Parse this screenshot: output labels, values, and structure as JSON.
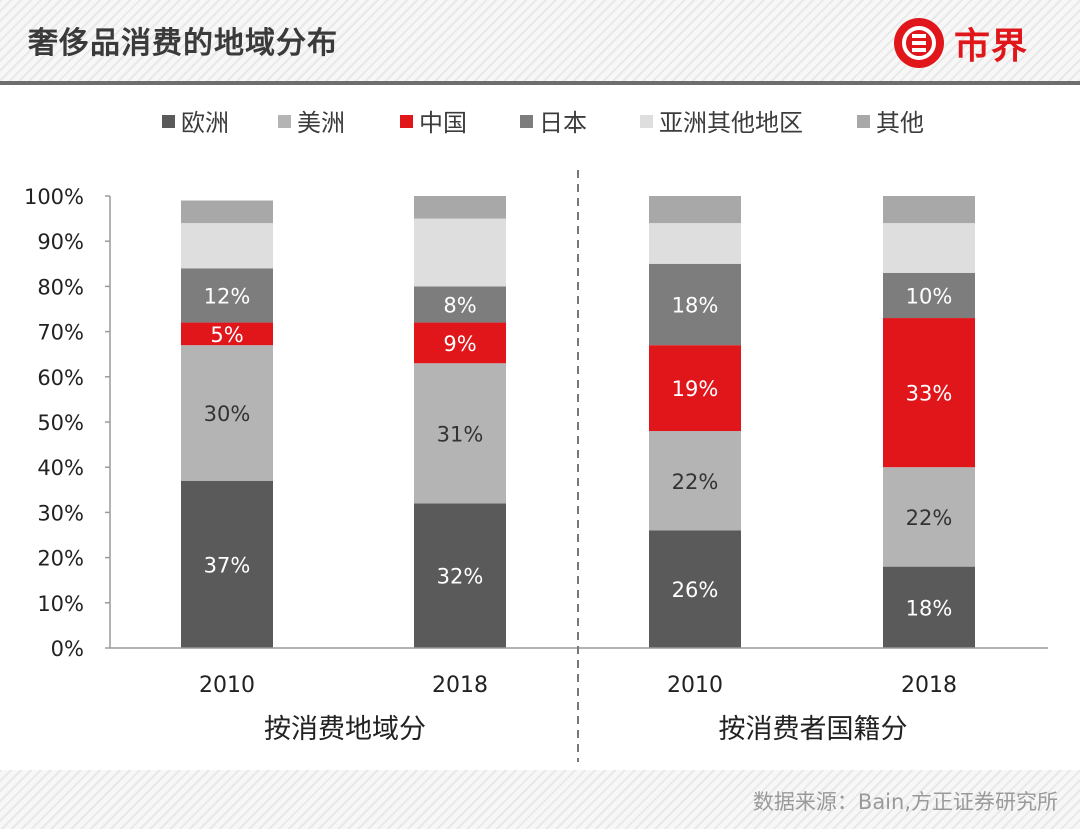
{
  "header": {
    "title": "奢侈品消费的地域分布",
    "logo_text": "市界",
    "colors": {
      "brand": "#e0161b",
      "rule": "#6e6e6e"
    }
  },
  "footer": {
    "source": "数据来源：Bain,方正证券研究所"
  },
  "chart_data": {
    "type": "bar",
    "stacked": true,
    "legend": [
      "欧洲",
      "美洲",
      "中国",
      "日本",
      "亚洲其他地区",
      "其他"
    ],
    "legend_position": "top",
    "ylim": [
      0,
      100
    ],
    "yticks": [
      "0%",
      "10%",
      "20%",
      "30%",
      "40%",
      "50%",
      "60%",
      "70%",
      "80%",
      "90%",
      "100%"
    ],
    "grid": false,
    "groups": [
      {
        "label": "按消费地域分",
        "categories": [
          "2010",
          "2018"
        ]
      },
      {
        "label": "按消费者国籍分",
        "categories": [
          "2010",
          "2018"
        ]
      }
    ],
    "categories": [
      "2010",
      "2018",
      "2010",
      "2018"
    ],
    "series": [
      {
        "name": "欧洲",
        "color": "#5a5a5a",
        "values": [
          37,
          32,
          26,
          18
        ],
        "labels": [
          "37%",
          "32%",
          "26%",
          "18%"
        ]
      },
      {
        "name": "美洲",
        "color": "#b4b4b4",
        "values": [
          30,
          31,
          22,
          22
        ],
        "labels": [
          "30%",
          "31%",
          "22%",
          "22%"
        ]
      },
      {
        "name": "中国",
        "color": "#e0161b",
        "values": [
          5,
          9,
          19,
          33
        ],
        "labels": [
          "5%",
          "9%",
          "19%",
          "33%"
        ]
      },
      {
        "name": "日本",
        "color": "#7d7d7d",
        "values": [
          12,
          8,
          18,
          10
        ],
        "labels": [
          "12%",
          "8%",
          "18%",
          "10%"
        ]
      },
      {
        "name": "亚洲其他地区",
        "color": "#dedede",
        "values": [
          10,
          15,
          9,
          11
        ],
        "labels": [
          "",
          "",
          "",
          ""
        ]
      },
      {
        "name": "其他",
        "color": "#a8a8a8",
        "values": [
          5,
          5,
          6,
          6
        ],
        "labels": [
          "",
          "",
          "",
          ""
        ]
      }
    ]
  }
}
